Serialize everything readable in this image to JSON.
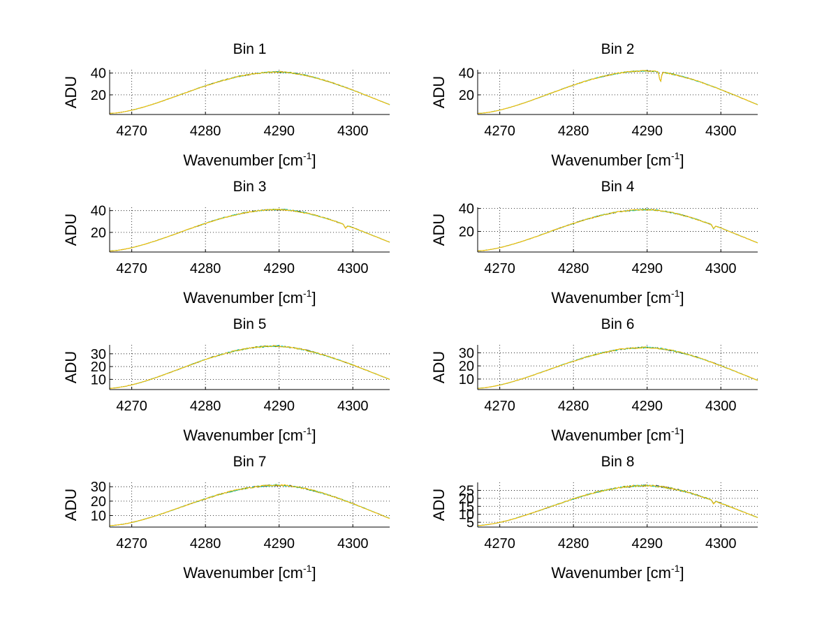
{
  "chart_data": [
    {
      "type": "line",
      "title": "Bin 1",
      "xlabel": "Wavenumber",
      "xlabel_unit": "cm",
      "xlabel_unit_exp": "-1",
      "ylabel": "ADU",
      "xlim": [
        4267,
        4305
      ],
      "ylim": [
        2,
        43
      ],
      "xticks": [
        4270,
        4280,
        4290,
        4300
      ],
      "yticks": [
        20,
        40
      ],
      "grid": true,
      "peak_x": 4290,
      "peak_y": 41,
      "start_y": 3,
      "end_y": 11,
      "dips": [],
      "colors": [
        "#222222",
        "#33aa33",
        "#00cccc",
        "#ffbf00"
      ]
    },
    {
      "type": "line",
      "title": "Bin 2",
      "xlabel": "Wavenumber",
      "xlabel_unit": "cm",
      "xlabel_unit_exp": "-1",
      "ylabel": "ADU",
      "xlim": [
        4267,
        4305
      ],
      "ylim": [
        2,
        43
      ],
      "xticks": [
        4270,
        4280,
        4290,
        4300
      ],
      "yticks": [
        20,
        40
      ],
      "grid": true,
      "peak_x": 4290,
      "peak_y": 42,
      "start_y": 3,
      "end_y": 11,
      "dips": [
        {
          "x": 4291.8,
          "depth": 9
        }
      ],
      "colors": [
        "#222222",
        "#33aa33",
        "#00cccc",
        "#ffbf00"
      ]
    },
    {
      "type": "line",
      "title": "Bin 3",
      "xlabel": "Wavenumber",
      "xlabel_unit": "cm",
      "xlabel_unit_exp": "-1",
      "ylabel": "ADU",
      "xlim": [
        4267,
        4305
      ],
      "ylim": [
        2,
        43
      ],
      "xticks": [
        4270,
        4280,
        4290,
        4300
      ],
      "yticks": [
        20,
        40
      ],
      "grid": true,
      "peak_x": 4290,
      "peak_y": 41,
      "start_y": 3,
      "end_y": 11,
      "dips": [
        {
          "x": 4299,
          "depth": 3
        }
      ],
      "colors": [
        "#222222",
        "#33aa33",
        "#00cccc",
        "#ffbf00"
      ]
    },
    {
      "type": "line",
      "title": "Bin 4",
      "xlabel": "Wavenumber",
      "xlabel_unit": "cm",
      "xlabel_unit_exp": "-1",
      "ylabel": "ADU",
      "xlim": [
        4267,
        4305
      ],
      "ylim": [
        2,
        41
      ],
      "xticks": [
        4270,
        4280,
        4290,
        4300
      ],
      "yticks": [
        20,
        40
      ],
      "grid": true,
      "peak_x": 4290,
      "peak_y": 39,
      "start_y": 3,
      "end_y": 10,
      "dips": [
        {
          "x": 4299,
          "depth": 3
        }
      ],
      "colors": [
        "#222222",
        "#33aa33",
        "#00cccc",
        "#ffbf00"
      ]
    },
    {
      "type": "line",
      "title": "Bin 5",
      "xlabel": "Wavenumber",
      "xlabel_unit": "cm",
      "xlabel_unit_exp": "-1",
      "ylabel": "ADU",
      "xlim": [
        4267,
        4305
      ],
      "ylim": [
        2,
        37
      ],
      "xticks": [
        4270,
        4280,
        4290,
        4300
      ],
      "yticks": [
        10,
        20,
        30
      ],
      "grid": true,
      "peak_x": 4289.5,
      "peak_y": 36,
      "start_y": 3,
      "end_y": 10,
      "dips": [],
      "colors": [
        "#222222",
        "#33aa33",
        "#00cccc",
        "#ffbf00"
      ]
    },
    {
      "type": "line",
      "title": "Bin 6",
      "xlabel": "Wavenumber",
      "xlabel_unit": "cm",
      "xlabel_unit_exp": "-1",
      "ylabel": "ADU",
      "xlim": [
        4267,
        4305
      ],
      "ylim": [
        2,
        36
      ],
      "xticks": [
        4270,
        4280,
        4290,
        4300
      ],
      "yticks": [
        10,
        20,
        30
      ],
      "grid": true,
      "peak_x": 4290,
      "peak_y": 34,
      "start_y": 3,
      "end_y": 9,
      "dips": [],
      "colors": [
        "#222222",
        "#33aa33",
        "#00cccc",
        "#ffbf00"
      ]
    },
    {
      "type": "line",
      "title": "Bin 7",
      "xlabel": "Wavenumber",
      "xlabel_unit": "cm",
      "xlabel_unit_exp": "-1",
      "ylabel": "ADU",
      "xlim": [
        4267,
        4305
      ],
      "ylim": [
        2,
        33
      ],
      "xticks": [
        4270,
        4280,
        4290,
        4300
      ],
      "yticks": [
        10,
        20,
        30
      ],
      "grid": true,
      "peak_x": 4290,
      "peak_y": 31,
      "start_y": 3,
      "end_y": 8,
      "dips": [],
      "colors": [
        "#222222",
        "#33aa33",
        "#00cccc",
        "#ffbf00"
      ]
    },
    {
      "type": "line",
      "title": "Bin 8",
      "xlabel": "Wavenumber",
      "xlabel_unit": "cm",
      "xlabel_unit_exp": "-1",
      "ylabel": "ADU",
      "xlim": [
        4267,
        4305
      ],
      "ylim": [
        2,
        30
      ],
      "xticks": [
        4270,
        4280,
        4290,
        4300
      ],
      "yticks": [
        5,
        10,
        15,
        20,
        25
      ],
      "grid": true,
      "peak_x": 4290,
      "peak_y": 28,
      "start_y": 3,
      "end_y": 8,
      "dips": [
        {
          "x": 4299,
          "depth": 2
        }
      ],
      "colors": [
        "#222222",
        "#33aa33",
        "#00cccc",
        "#ffbf00"
      ]
    }
  ]
}
